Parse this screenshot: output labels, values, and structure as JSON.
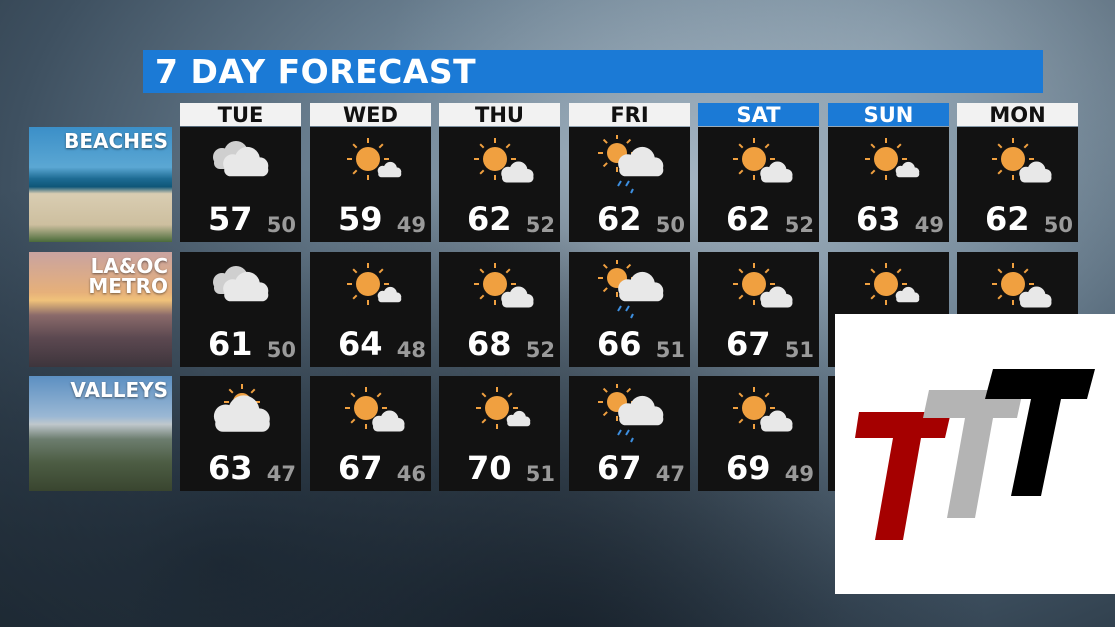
{
  "title": "7 DAY FORECAST",
  "days": [
    {
      "label": "TUE",
      "weekend": false
    },
    {
      "label": "WED",
      "weekend": false
    },
    {
      "label": "THU",
      "weekend": false
    },
    {
      "label": "FRI",
      "weekend": false
    },
    {
      "label": "SAT",
      "weekend": true
    },
    {
      "label": "SUN",
      "weekend": true
    },
    {
      "label": "MON",
      "weekend": false
    }
  ],
  "regions": [
    {
      "label_lines": [
        "BEACHES"
      ],
      "forecast": [
        {
          "icon": "cloudy",
          "hi": "57",
          "lo": "50"
        },
        {
          "icon": "mostly-sunny",
          "hi": "59",
          "lo": "49"
        },
        {
          "icon": "partly-sunny",
          "hi": "62",
          "lo": "52"
        },
        {
          "icon": "rain-showers",
          "hi": "62",
          "lo": "50"
        },
        {
          "icon": "partly-sunny",
          "hi": "62",
          "lo": "52"
        },
        {
          "icon": "mostly-sunny",
          "hi": "63",
          "lo": "49"
        },
        {
          "icon": "partly-sunny",
          "hi": "62",
          "lo": "50"
        }
      ]
    },
    {
      "label_lines": [
        "LA&OC",
        "METRO"
      ],
      "forecast": [
        {
          "icon": "cloudy",
          "hi": "61",
          "lo": "50"
        },
        {
          "icon": "mostly-sunny",
          "hi": "64",
          "lo": "48"
        },
        {
          "icon": "partly-sunny",
          "hi": "68",
          "lo": "52"
        },
        {
          "icon": "rain-showers",
          "hi": "66",
          "lo": "51"
        },
        {
          "icon": "partly-sunny",
          "hi": "67",
          "lo": "51"
        },
        {
          "icon": "mostly-sunny",
          "hi": null,
          "lo": null
        },
        {
          "icon": "partly-sunny",
          "hi": null,
          "lo": null
        }
      ]
    },
    {
      "label_lines": [
        "VALLEYS"
      ],
      "forecast": [
        {
          "icon": "mostly-cloudy",
          "hi": "63",
          "lo": "47"
        },
        {
          "icon": "partly-sunny",
          "hi": "67",
          "lo": "46"
        },
        {
          "icon": "mostly-sunny",
          "hi": "70",
          "lo": "51"
        },
        {
          "icon": "rain-showers",
          "hi": "67",
          "lo": "47"
        },
        {
          "icon": "partly-sunny",
          "hi": "69",
          "lo": "49"
        },
        {
          "icon": null,
          "hi": null,
          "lo": null
        },
        {
          "icon": null,
          "hi": null,
          "lo": null
        }
      ]
    }
  ],
  "colors": {
    "accent": "#1b7ad6",
    "sun": "#f0a040",
    "logo_red": "#a50000",
    "logo_gray": "#b4b4b4",
    "logo_black": "#000000"
  },
  "logo": {
    "text": "TTT"
  }
}
